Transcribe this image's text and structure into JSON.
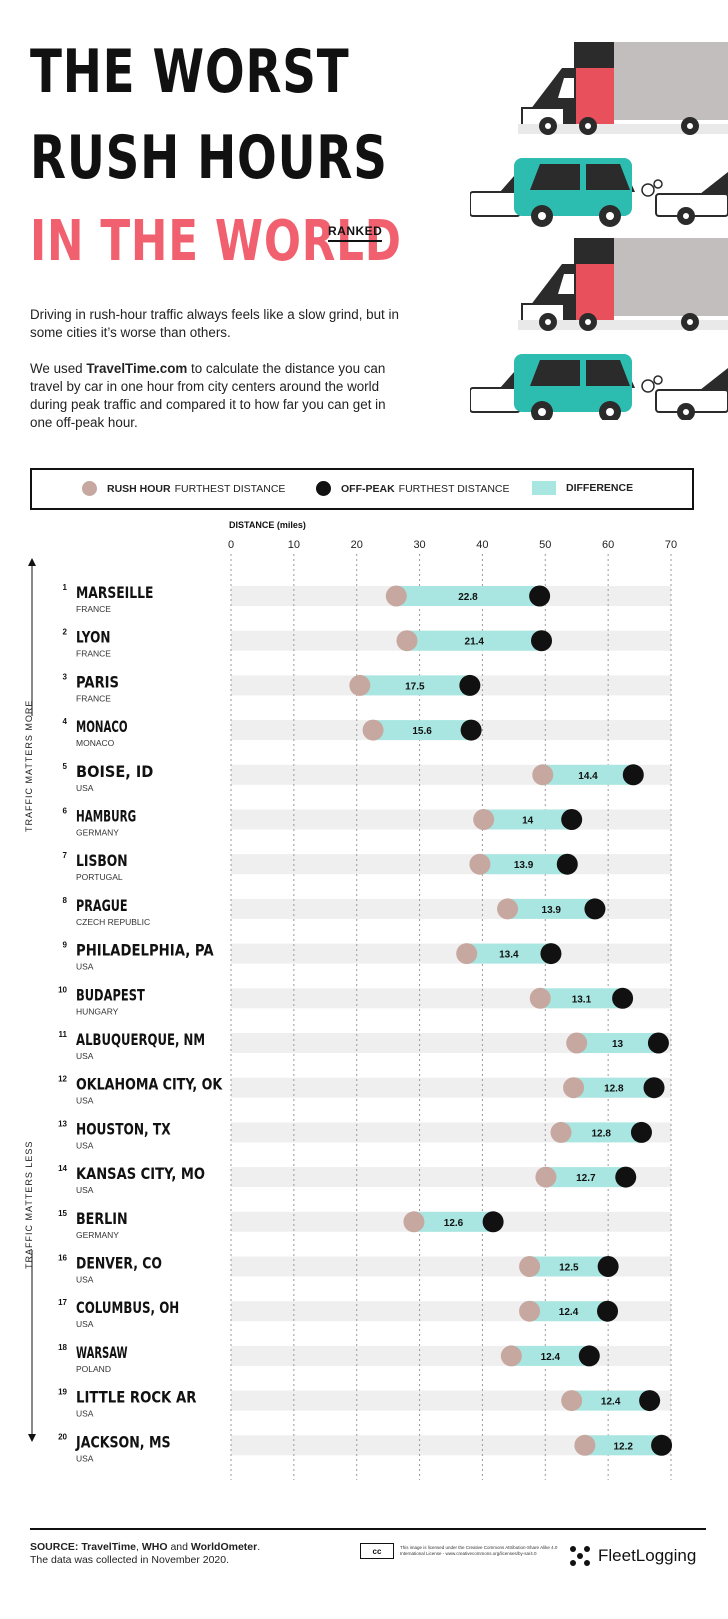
{
  "header": {
    "title_line1": "THE WORST",
    "title_line2": "RUSH HOURS",
    "title_line3": "IN THE WORLD",
    "ranked": "RANKED"
  },
  "intro": {
    "p1": "Driving in rush-hour traffic always feels like a slow grind, but in some cities it’s worse than others.",
    "p2_pre": "We used ",
    "p2_brand": "TravelTime.com",
    "p2_post": " to calculate the distance you can travel by car in one hour from city centers around the world during peak traffic and compared it to how far you can get in one off-peak hour."
  },
  "legend": {
    "rush_bold": "RUSH HOUR",
    "rush_rest": "FURTHEST DISTANCE",
    "off_bold": "OFF-PEAK",
    "off_rest": "FURTHEST DISTANCE",
    "diff": "DIFFERENCE"
  },
  "side_labels": {
    "top": "TRAFFIC MATTERS MORE",
    "bottom": "TRAFFIC MATTERS LESS"
  },
  "colors": {
    "rush": "#c7a8a0",
    "offpeak": "#111111",
    "difference": "#a9e6e1",
    "track": "#efefef",
    "accent": "#f0606e"
  },
  "chart_data": {
    "type": "bar",
    "subtype": "dumbbell",
    "xlabel": "DISTANCE (miles)",
    "xlim": [
      0,
      70
    ],
    "xticks": [
      0,
      10,
      20,
      30,
      40,
      50,
      60,
      70
    ],
    "grid": "vertical dashed",
    "series_names": [
      "RUSH HOUR FURTHEST DISTANCE",
      "OFF-PEAK FURTHEST DISTANCE",
      "DIFFERENCE"
    ],
    "rows": [
      {
        "rank": "1",
        "city": "MARSEILLE",
        "country": "FRANCE",
        "rush": 26.3,
        "offpeak": 49.1,
        "diff": "22.8"
      },
      {
        "rank": "2",
        "city": "LYON",
        "country": "FRANCE",
        "rush": 28.0,
        "offpeak": 49.4,
        "diff": "21.4"
      },
      {
        "rank": "3",
        "city": "PARIS",
        "country": "FRANCE",
        "rush": 20.5,
        "offpeak": 38.0,
        "diff": "17.5"
      },
      {
        "rank": "4",
        "city": "MONACO",
        "country": "MONACO",
        "rush": 22.6,
        "offpeak": 38.2,
        "diff": "15.6"
      },
      {
        "rank": "5",
        "city": "BOISE, ID",
        "country": "USA",
        "rush": 49.6,
        "offpeak": 64.0,
        "diff": "14.4"
      },
      {
        "rank": "6",
        "city": "HAMBURG",
        "country": "GERMANY",
        "rush": 40.2,
        "offpeak": 54.2,
        "diff": "14"
      },
      {
        "rank": "7",
        "city": "LISBON",
        "country": "PORTUGAL",
        "rush": 39.6,
        "offpeak": 53.5,
        "diff": "13.9"
      },
      {
        "rank": "8",
        "city": "PRAGUE",
        "country": "CZECH REPUBLIC",
        "rush": 44.0,
        "offpeak": 57.9,
        "diff": "13.9"
      },
      {
        "rank": "9",
        "city": "PHILADELPHIA, PA",
        "country": "USA",
        "rush": 37.5,
        "offpeak": 50.9,
        "diff": "13.4"
      },
      {
        "rank": "10",
        "city": "BUDAPEST",
        "country": "HUNGARY",
        "rush": 49.2,
        "offpeak": 62.3,
        "diff": "13.1"
      },
      {
        "rank": "11",
        "city": "ALBUQUERQUE, NM",
        "country": "USA",
        "rush": 55.0,
        "offpeak": 68.0,
        "diff": "13"
      },
      {
        "rank": "12",
        "city": "OKLAHOMA CITY, OK",
        "country": "USA",
        "rush": 54.5,
        "offpeak": 67.3,
        "diff": "12.8"
      },
      {
        "rank": "13",
        "city": "HOUSTON, TX",
        "country": "USA",
        "rush": 52.5,
        "offpeak": 65.3,
        "diff": "12.8"
      },
      {
        "rank": "14",
        "city": "KANSAS CITY, MO",
        "country": "USA",
        "rush": 50.1,
        "offpeak": 62.8,
        "diff": "12.7"
      },
      {
        "rank": "15",
        "city": "BERLIN",
        "country": "GERMANY",
        "rush": 29.1,
        "offpeak": 41.7,
        "diff": "12.6"
      },
      {
        "rank": "16",
        "city": "DENVER, CO",
        "country": "USA",
        "rush": 47.5,
        "offpeak": 60.0,
        "diff": "12.5"
      },
      {
        "rank": "17",
        "city": "COLUMBUS, OH",
        "country": "USA",
        "rush": 47.5,
        "offpeak": 59.9,
        "diff": "12.4"
      },
      {
        "rank": "18",
        "city": "WARSAW",
        "country": "POLAND",
        "rush": 44.6,
        "offpeak": 57.0,
        "diff": "12.4"
      },
      {
        "rank": "19",
        "city": "LITTLE ROCK AR",
        "country": "USA",
        "rush": 54.2,
        "offpeak": 66.6,
        "diff": "12.4"
      },
      {
        "rank": "20",
        "city": "JACKSON, MS",
        "country": "USA",
        "rush": 56.3,
        "offpeak": 68.5,
        "diff": "12.2"
      }
    ]
  },
  "footer": {
    "source_label": "SOURCE: ",
    "source_a": "TravelTime",
    "source_sep1": ", ",
    "source_b": "WHO",
    "source_sep2": " and ",
    "source_c": "WorldOmeter",
    "source_end": ".",
    "collected": "The data was collected in November 2020.",
    "cc_badge": "cc",
    "license": "This image is licensed under the Creative Commons Attribution-Share Alike 4.0 International License - www.creativecommons.org/licenses/by-sa/4.0",
    "brand": "FleetLogging"
  }
}
